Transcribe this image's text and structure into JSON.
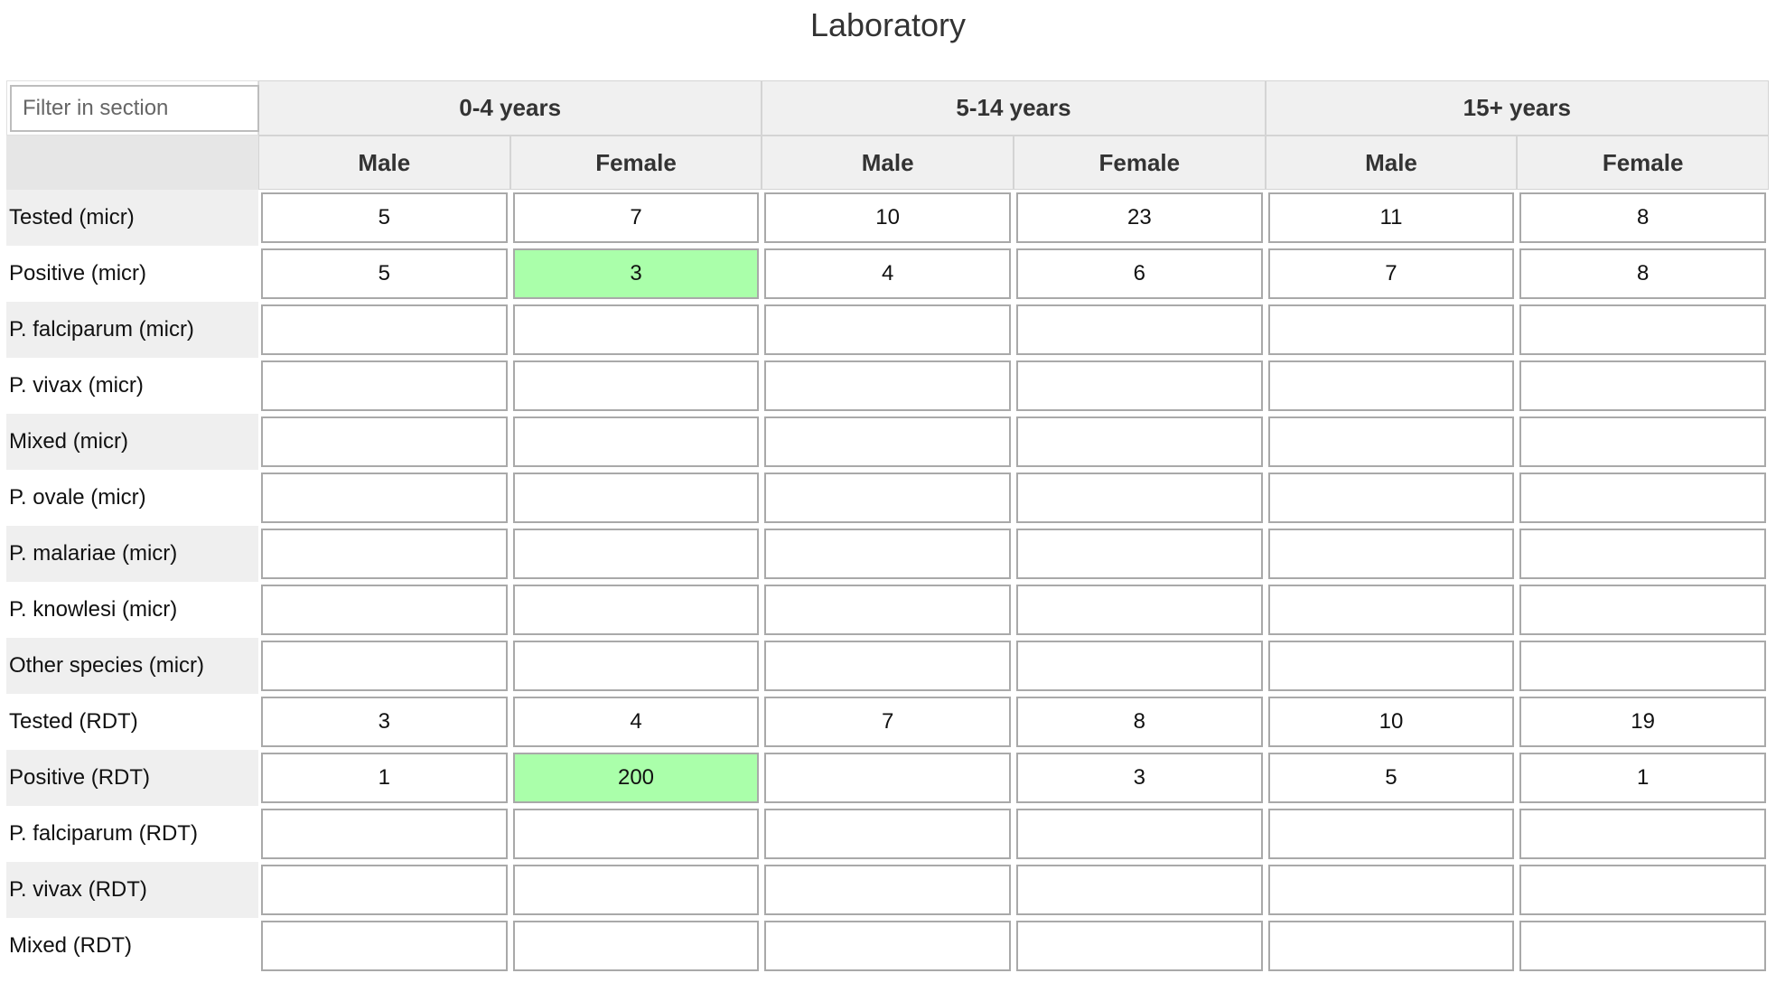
{
  "section": {
    "title": "Laboratory",
    "filter_placeholder": "Filter in section"
  },
  "columns": {
    "age_groups": [
      "0-4 years",
      "5-14 years",
      "15+ years"
    ],
    "sexes": [
      "Male",
      "Female",
      "Male",
      "Female",
      "Male",
      "Female"
    ]
  },
  "colors": {
    "saved_cell": "#aaffaa",
    "header_bg": "#f0f0f0",
    "row_stripe": "#efefef"
  },
  "rows": [
    {
      "label": "Tested (micr)",
      "values": [
        "5",
        "7",
        "10",
        "23",
        "11",
        "8"
      ],
      "highlight": []
    },
    {
      "label": "Positive (micr)",
      "values": [
        "5",
        "3",
        "4",
        "6",
        "7",
        "8"
      ],
      "highlight": [
        1
      ]
    },
    {
      "label": "P. falciparum (micr)",
      "values": [
        "",
        "",
        "",
        "",
        "",
        ""
      ],
      "highlight": []
    },
    {
      "label": "P. vivax (micr)",
      "values": [
        "",
        "",
        "",
        "",
        "",
        ""
      ],
      "highlight": []
    },
    {
      "label": "Mixed (micr)",
      "values": [
        "",
        "",
        "",
        "",
        "",
        ""
      ],
      "highlight": []
    },
    {
      "label": "P. ovale (micr)",
      "values": [
        "",
        "",
        "",
        "",
        "",
        ""
      ],
      "highlight": []
    },
    {
      "label": "P. malariae (micr)",
      "values": [
        "",
        "",
        "",
        "",
        "",
        ""
      ],
      "highlight": []
    },
    {
      "label": "P. knowlesi (micr)",
      "values": [
        "",
        "",
        "",
        "",
        "",
        ""
      ],
      "highlight": []
    },
    {
      "label": "Other species (micr)",
      "values": [
        "",
        "",
        "",
        "",
        "",
        ""
      ],
      "highlight": []
    },
    {
      "label": "Tested (RDT)",
      "values": [
        "3",
        "4",
        "7",
        "8",
        "10",
        "19"
      ],
      "highlight": []
    },
    {
      "label": "Positive (RDT)",
      "values": [
        "1",
        "200",
        "",
        "3",
        "5",
        "1"
      ],
      "highlight": [
        1
      ]
    },
    {
      "label": "P. falciparum (RDT)",
      "values": [
        "",
        "",
        "",
        "",
        "",
        ""
      ],
      "highlight": []
    },
    {
      "label": "P. vivax (RDT)",
      "values": [
        "",
        "",
        "",
        "",
        "",
        ""
      ],
      "highlight": []
    },
    {
      "label": "Mixed (RDT)",
      "values": [
        "",
        "",
        "",
        "",
        "",
        ""
      ],
      "highlight": []
    }
  ]
}
